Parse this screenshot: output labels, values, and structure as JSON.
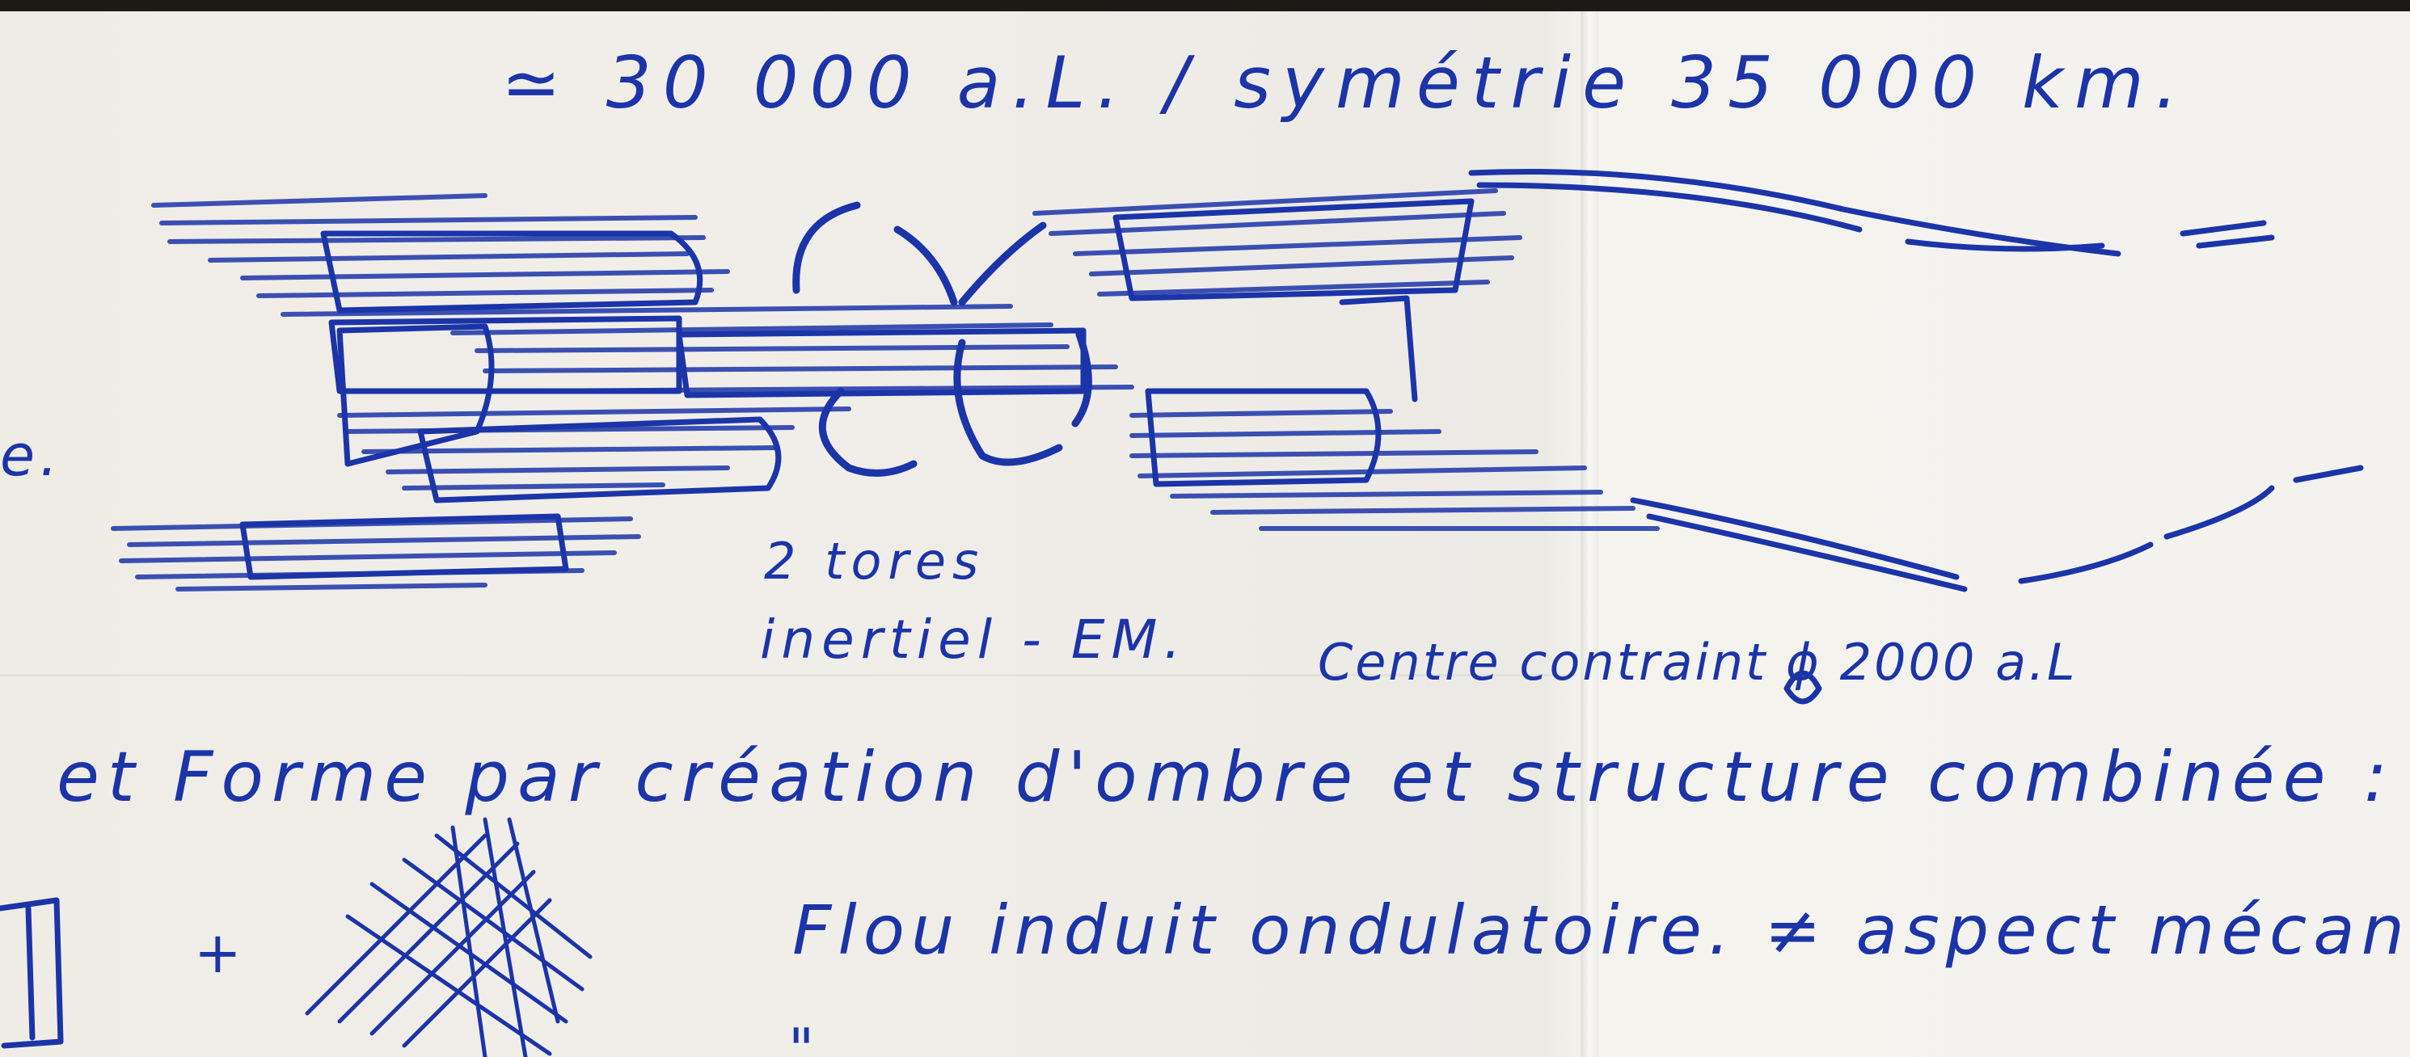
{
  "note": {
    "header": "≃ 30 000 a.L. / symétrie 35 000 km.",
    "margin_letter": "e.",
    "label_line1": "2 tores",
    "label_line2": "inertiel - EM.",
    "label_line3": "Centre contraint ϕ 2000 a.L",
    "line_main": "et Forme par création d'ombre et structure combinée : morph",
    "plus": "+",
    "line_flow": "Flou induit ondulatoire. ≠ aspect mécanique.",
    "line_cut": "\"",
    "ink_color": "#1b34a8",
    "paper_color": "#efece6"
  }
}
